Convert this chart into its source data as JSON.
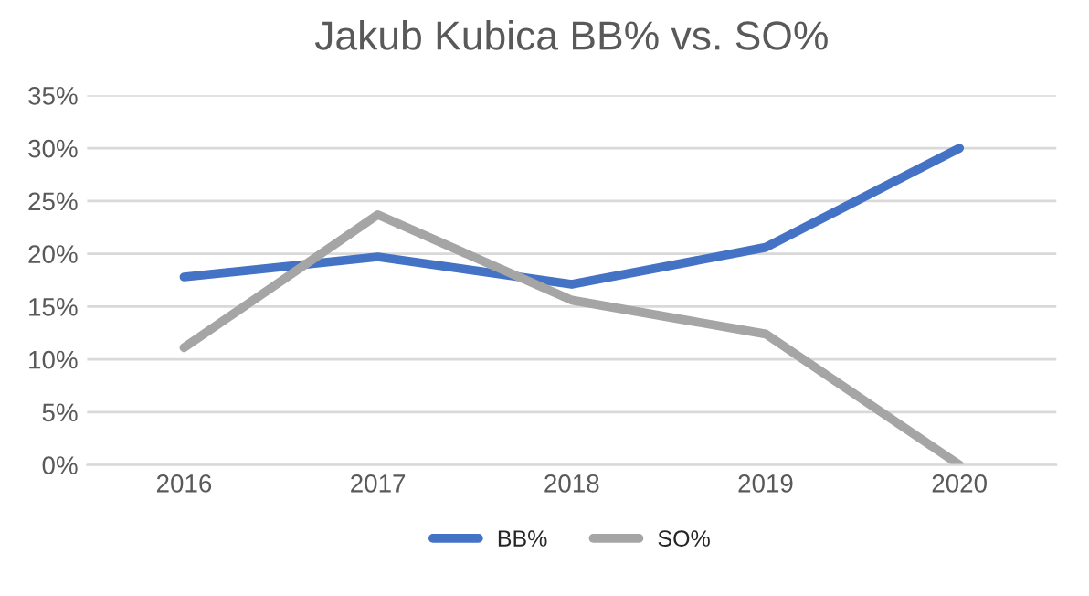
{
  "chart_data": {
    "type": "line",
    "title": "Jakub Kubica BB% vs. SO%",
    "categories": [
      "2016",
      "2017",
      "2018",
      "2019",
      "2020"
    ],
    "series": [
      {
        "name": "BB%",
        "color": "#4472c4",
        "values": [
          17.8,
          19.7,
          17.1,
          20.6,
          30.0
        ]
      },
      {
        "name": "SO%",
        "color": "#a5a5a5",
        "values": [
          11.1,
          23.7,
          15.6,
          12.4,
          0
        ]
      }
    ],
    "ylim": [
      0,
      35
    ],
    "yticks": [
      {
        "value": 0,
        "label": "0%"
      },
      {
        "value": 5,
        "label": "5%"
      },
      {
        "value": 10,
        "label": "10%"
      },
      {
        "value": 15,
        "label": "15%"
      },
      {
        "value": 20,
        "label": "20%"
      },
      {
        "value": 25,
        "label": "25%"
      },
      {
        "value": 30,
        "label": "30%"
      },
      {
        "value": 35,
        "label": "35%"
      }
    ],
    "grid": "y",
    "legend": "bottom",
    "marker": "none",
    "line_style": "solid"
  }
}
